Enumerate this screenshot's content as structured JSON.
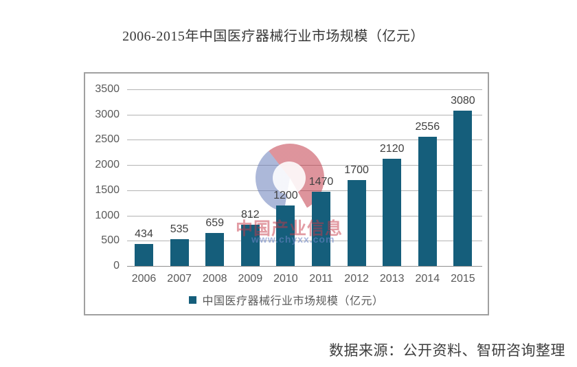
{
  "title": "2006-2015年中国医疗器械行业市场规模（亿元）",
  "source_note": "数据来源：公开资料、智研咨询整理",
  "watermark": {
    "brand_text": "中国产业信息",
    "site_text": "www.chyxx.com"
  },
  "legend": {
    "label": "中国医疗器械行业市场规模（亿元）"
  },
  "colors": {
    "bar": "#155e7b",
    "grid": "#b3b3b3",
    "axis_line": "#8f8f8f",
    "box_border": "#a0a0a0",
    "axis_text": "#595959",
    "data_label_text": "#3f3f3f",
    "watermark_red": "#c53748",
    "watermark_blue": "#6a84c4"
  },
  "chart_data": {
    "type": "bar",
    "title": "2006-2015年中国医疗器械行业市场规模（亿元）",
    "categories": [
      "2006",
      "2007",
      "2008",
      "2009",
      "2010",
      "2011",
      "2012",
      "2013",
      "2014",
      "2015"
    ],
    "values": [
      434,
      535,
      659,
      812,
      1200,
      1470,
      1700,
      2120,
      2556,
      3080
    ],
    "series_name": "中国医疗器械行业市场规模（亿元）",
    "xlabel": "",
    "ylabel": "",
    "ylim": [
      0,
      3500
    ],
    "ytick_interval": 500,
    "ytick_labels": [
      "0",
      "500",
      "1000",
      "1500",
      "2000",
      "2500",
      "3000",
      "3500"
    ],
    "grid": true,
    "data_labels": true,
    "legend_position": "bottom",
    "source": "数据来源：公开资料、智研咨询整理"
  }
}
